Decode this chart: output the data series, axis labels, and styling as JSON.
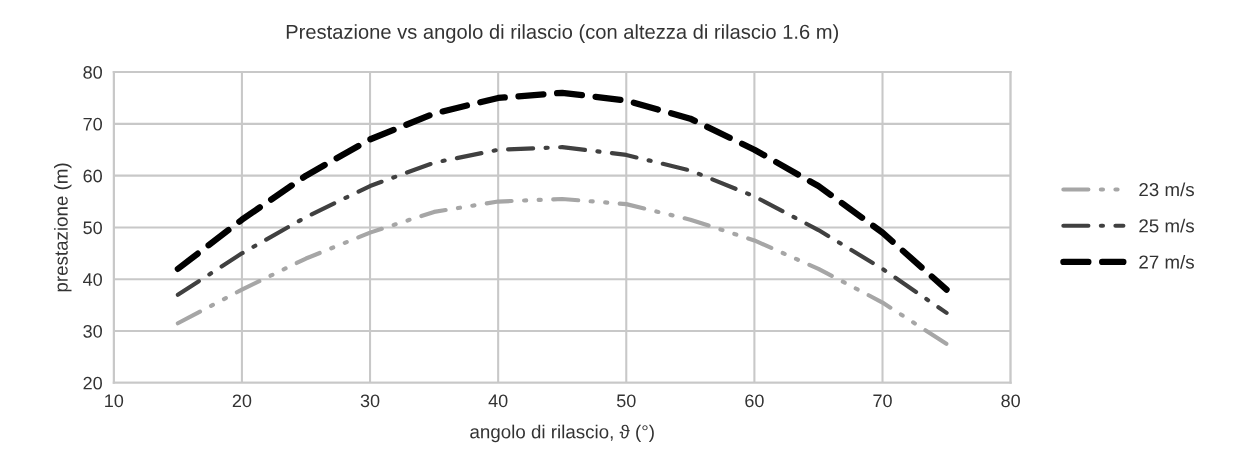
{
  "chart_data": {
    "type": "line",
    "title": "Prestazione vs angolo di rilascio (con altezza di rilascio 1.6 m)",
    "xlabel": "angolo di rilascio, ϑ (°)",
    "ylabel": "prestazione (m)",
    "x": [
      15,
      20,
      25,
      30,
      35,
      40,
      45,
      50,
      55,
      60,
      65,
      70,
      75
    ],
    "series": [
      {
        "name": "23 m/s",
        "color": "#a6a6a6",
        "line_style": "dashdotdot",
        "values": [
          31.5,
          38,
          44,
          49,
          53,
          55,
          55.5,
          54.5,
          51.5,
          47.5,
          42,
          35.5,
          27.5
        ]
      },
      {
        "name": "25 m/s",
        "color": "#404040",
        "line_style": "dashdot",
        "values": [
          37,
          45,
          52,
          58,
          62.5,
          65,
          65.5,
          64,
          61,
          56,
          49.5,
          42,
          33.5
        ]
      },
      {
        "name": "27 m/s",
        "color": "#000000",
        "line_style": "dashed",
        "values": [
          42,
          51.5,
          60,
          67,
          72,
          75,
          76,
          74.5,
          71,
          65,
          58,
          49,
          38
        ]
      }
    ],
    "xlim": [
      10,
      80
    ],
    "xticks": [
      10,
      20,
      30,
      40,
      50,
      60,
      70,
      80
    ],
    "ylim": [
      20,
      80
    ],
    "yticks": [
      20,
      30,
      40,
      50,
      60,
      70,
      80
    ],
    "grid": true,
    "legend": "right"
  }
}
